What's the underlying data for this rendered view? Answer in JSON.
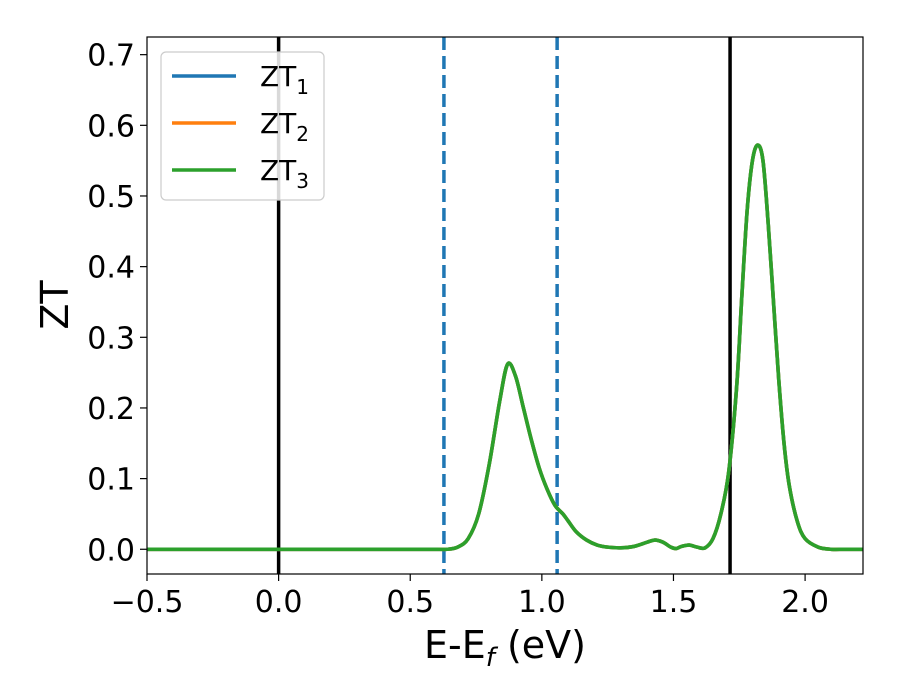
{
  "chart_data": {
    "type": "line",
    "xlabel": "E-E",
    "xlabel_sub": "f",
    "xlabel_unit": " (eV)",
    "ylabel": "ZT",
    "xlim": [
      -0.5,
      2.22
    ],
    "ylim": [
      -0.035,
      0.725
    ],
    "xticks": [
      -0.5,
      0.0,
      0.5,
      1.0,
      1.5,
      2.0
    ],
    "xtick_labels": [
      "−0.5",
      "0.0",
      "0.5",
      "1.0",
      "1.5",
      "2.0"
    ],
    "yticks": [
      0.0,
      0.1,
      0.2,
      0.3,
      0.4,
      0.5,
      0.6,
      0.7
    ],
    "ytick_labels": [
      "0.0",
      "0.1",
      "0.2",
      "0.3",
      "0.4",
      "0.5",
      "0.6",
      "0.7"
    ],
    "grid": false,
    "legend_position": "top-left",
    "vertical_lines": [
      {
        "x": 0.0,
        "style": "solid",
        "color": "#000000"
      },
      {
        "x": 0.628,
        "style": "dashed",
        "color": "#1f77b4"
      },
      {
        "x": 1.058,
        "style": "dashed",
        "color": "#1f77b4"
      },
      {
        "x": 1.715,
        "style": "solid",
        "color": "#000000"
      }
    ],
    "series": [
      {
        "name": "ZT",
        "sub": "1",
        "color": "#1f77b4",
        "x": [
          -0.5,
          0.0,
          0.5,
          0.6,
          0.64,
          0.68,
          0.72,
          0.76,
          0.8,
          0.84,
          0.87,
          0.9,
          0.93,
          0.96,
          0.99,
          1.02,
          1.05,
          1.08,
          1.1,
          1.13,
          1.17,
          1.21,
          1.25,
          1.3,
          1.35,
          1.4,
          1.43,
          1.46,
          1.49,
          1.51,
          1.53,
          1.56,
          1.59,
          1.62,
          1.65,
          1.68,
          1.71,
          1.74,
          1.76,
          1.78,
          1.8,
          1.82,
          1.84,
          1.86,
          1.88,
          1.9,
          1.92,
          1.94,
          1.97,
          2.0,
          2.05,
          2.1,
          2.15,
          2.22
        ],
        "y": [
          0.0,
          0.0,
          0.0,
          0.0,
          0.0,
          0.003,
          0.015,
          0.05,
          0.12,
          0.21,
          0.262,
          0.245,
          0.2,
          0.155,
          0.115,
          0.085,
          0.062,
          0.05,
          0.04,
          0.025,
          0.013,
          0.006,
          0.003,
          0.002,
          0.004,
          0.01,
          0.013,
          0.01,
          0.003,
          0.001,
          0.004,
          0.006,
          0.003,
          0.002,
          0.015,
          0.05,
          0.11,
          0.23,
          0.36,
          0.48,
          0.55,
          0.572,
          0.55,
          0.46,
          0.35,
          0.24,
          0.15,
          0.09,
          0.04,
          0.015,
          0.003,
          0.0,
          0.0,
          0.0
        ]
      },
      {
        "name": "ZT",
        "sub": "2",
        "color": "#ff7f0e",
        "x": [
          -0.5,
          0.0,
          0.5,
          0.6,
          0.64,
          0.68,
          0.72,
          0.76,
          0.8,
          0.84,
          0.87,
          0.9,
          0.93,
          0.96,
          0.99,
          1.02,
          1.05,
          1.08,
          1.1,
          1.13,
          1.17,
          1.21,
          1.25,
          1.3,
          1.35,
          1.4,
          1.43,
          1.46,
          1.49,
          1.51,
          1.53,
          1.56,
          1.59,
          1.62,
          1.65,
          1.68,
          1.71,
          1.74,
          1.76,
          1.78,
          1.8,
          1.82,
          1.84,
          1.86,
          1.88,
          1.9,
          1.92,
          1.94,
          1.97,
          2.0,
          2.05,
          2.1,
          2.15,
          2.22
        ],
        "y": [
          0.0,
          0.0,
          0.0,
          0.0,
          0.0,
          0.003,
          0.015,
          0.05,
          0.12,
          0.21,
          0.262,
          0.245,
          0.2,
          0.155,
          0.115,
          0.085,
          0.062,
          0.05,
          0.04,
          0.025,
          0.013,
          0.006,
          0.003,
          0.002,
          0.004,
          0.01,
          0.013,
          0.01,
          0.003,
          0.001,
          0.004,
          0.006,
          0.003,
          0.002,
          0.015,
          0.05,
          0.11,
          0.23,
          0.36,
          0.48,
          0.55,
          0.572,
          0.55,
          0.46,
          0.35,
          0.24,
          0.15,
          0.09,
          0.04,
          0.015,
          0.003,
          0.0,
          0.0,
          0.0
        ]
      },
      {
        "name": "ZT",
        "sub": "3",
        "color": "#2ca02c",
        "x": [
          -0.5,
          0.0,
          0.5,
          0.6,
          0.64,
          0.68,
          0.72,
          0.76,
          0.8,
          0.84,
          0.87,
          0.9,
          0.93,
          0.96,
          0.99,
          1.02,
          1.05,
          1.08,
          1.1,
          1.13,
          1.17,
          1.21,
          1.25,
          1.3,
          1.35,
          1.4,
          1.43,
          1.46,
          1.49,
          1.51,
          1.53,
          1.56,
          1.59,
          1.62,
          1.65,
          1.68,
          1.71,
          1.74,
          1.76,
          1.78,
          1.8,
          1.82,
          1.84,
          1.86,
          1.88,
          1.9,
          1.92,
          1.94,
          1.97,
          2.0,
          2.05,
          2.1,
          2.15,
          2.22
        ],
        "y": [
          0.0,
          0.0,
          0.0,
          0.0,
          0.0,
          0.003,
          0.015,
          0.05,
          0.12,
          0.21,
          0.262,
          0.245,
          0.2,
          0.155,
          0.115,
          0.085,
          0.062,
          0.05,
          0.04,
          0.025,
          0.013,
          0.006,
          0.003,
          0.002,
          0.004,
          0.01,
          0.013,
          0.01,
          0.003,
          0.001,
          0.004,
          0.006,
          0.003,
          0.002,
          0.015,
          0.05,
          0.11,
          0.23,
          0.36,
          0.48,
          0.55,
          0.572,
          0.55,
          0.46,
          0.35,
          0.24,
          0.15,
          0.09,
          0.04,
          0.015,
          0.003,
          0.0,
          0.0,
          0.0
        ]
      }
    ]
  }
}
